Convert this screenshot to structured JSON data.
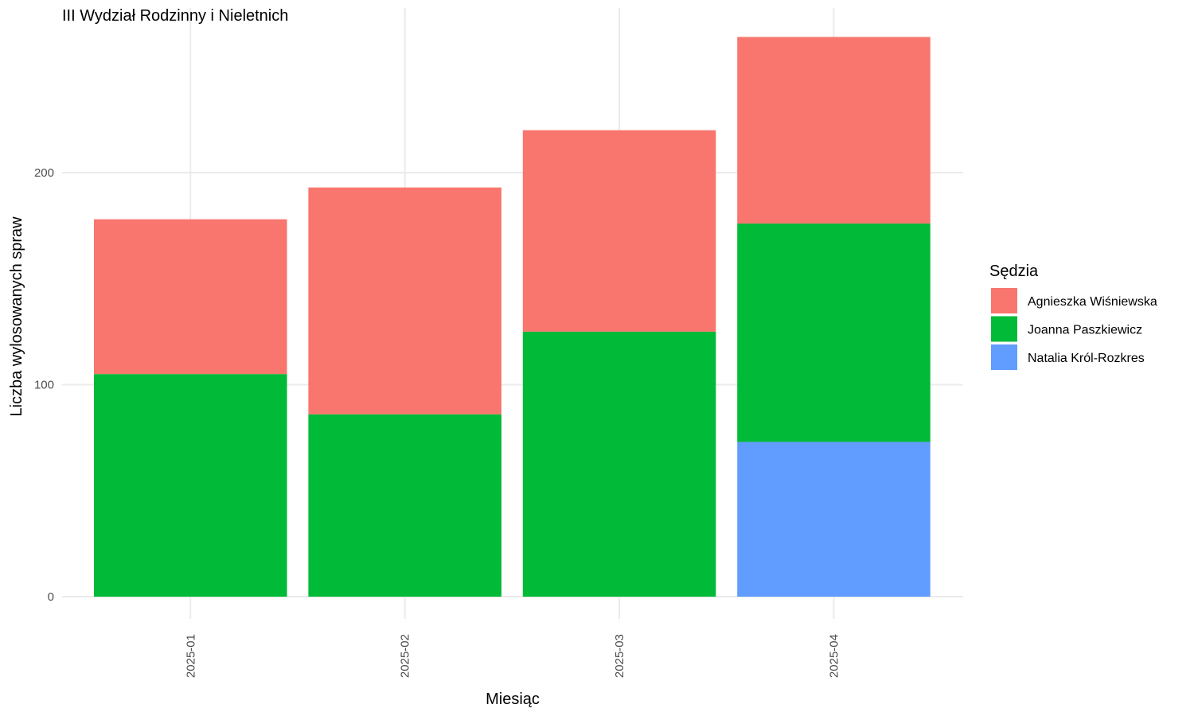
{
  "chart_data": {
    "type": "bar",
    "stacked": true,
    "title": "III Wydział Rodzinny i Nieletnich",
    "xlabel": "Miesiąc",
    "ylabel": "Liczba wylosowanych spraw",
    "categories": [
      "2025-01",
      "2025-02",
      "2025-03",
      "2025-04"
    ],
    "ylim": [
      0,
      264
    ],
    "yticks": [
      0,
      100,
      200
    ],
    "grid": true,
    "legend": {
      "title": "Sędzia",
      "position": "right"
    },
    "series": [
      {
        "name": "Natalia Król-Rozkres",
        "color": "#619cff",
        "values": [
          0,
          0,
          0,
          73
        ]
      },
      {
        "name": "Joanna Paszkiewicz",
        "color": "#00ba38",
        "values": [
          105,
          86,
          125,
          103
        ]
      },
      {
        "name": "Agnieszka Wiśniewska",
        "color": "#f8766d",
        "values": [
          73,
          107,
          95,
          88
        ]
      }
    ],
    "legend_order": [
      "Agnieszka Wiśniewska",
      "Joanna Paszkiewicz",
      "Natalia Król-Rozkres"
    ]
  }
}
